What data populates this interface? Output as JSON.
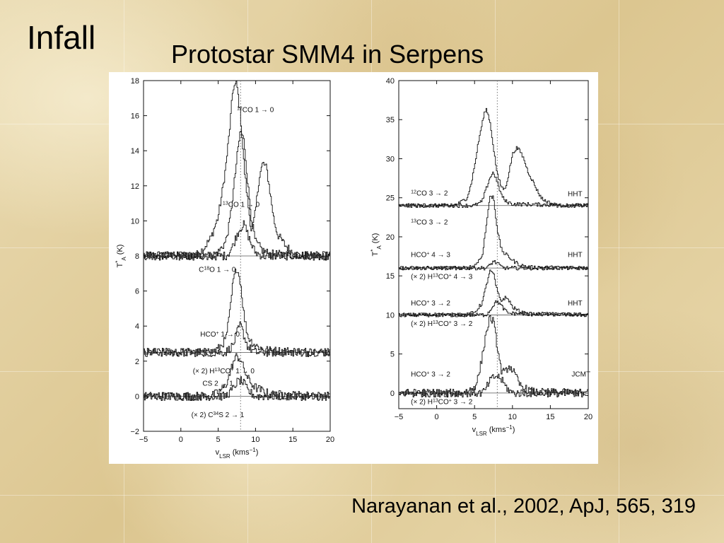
{
  "slide": {
    "title": "Infall",
    "subtitle": "Protostar SMM4 in Serpens",
    "citation": "Narayanan et al., 2002, ApJ, 565, 319"
  },
  "chart_data": [
    {
      "type": "line",
      "panel": "left",
      "xlabel": "v_LSR (kms^-1)",
      "ylabel": "T*_A (K)",
      "xlim": [
        -5,
        20
      ],
      "ylim": [
        -2,
        18
      ],
      "xticks": [
        -5,
        0,
        5,
        10,
        15,
        20
      ],
      "yticks": [
        -2,
        0,
        2,
        4,
        6,
        8,
        10,
        12,
        14,
        16,
        18
      ],
      "vline": 8,
      "baselines": [
        8,
        2.5,
        0
      ],
      "series": [
        {
          "name": "12CO 1→0",
          "style": "step",
          "points": [
            [
              -5,
              8
            ],
            [
              2,
              8
            ],
            [
              3,
              8.4
            ],
            [
              4,
              9
            ],
            [
              5,
              10.2
            ],
            [
              5.5,
              11.5
            ],
            [
              6,
              13
            ],
            [
              6.5,
              15
            ],
            [
              7,
              17.6
            ],
            [
              7.5,
              17.8
            ],
            [
              8,
              16
            ],
            [
              8.5,
              13
            ],
            [
              9,
              11
            ],
            [
              9.5,
              9.3
            ],
            [
              10,
              10.5
            ],
            [
              10.5,
              12.5
            ],
            [
              11,
              13.3
            ],
            [
              11.5,
              13
            ],
            [
              12,
              11.5
            ],
            [
              12.5,
              10
            ],
            [
              13,
              9.2
            ],
            [
              14,
              8.6
            ],
            [
              15,
              8.2
            ],
            [
              16,
              8
            ],
            [
              20,
              8
            ]
          ]
        },
        {
          "name": "13CO 1→0",
          "style": "step",
          "points": [
            [
              -5,
              8
            ],
            [
              4,
              8
            ],
            [
              5,
              8.2
            ],
            [
              6,
              8.8
            ],
            [
              6.5,
              9.8
            ],
            [
              7,
              11.5
            ],
            [
              7.5,
              13.5
            ],
            [
              8,
              15.2
            ],
            [
              8.5,
              14.5
            ],
            [
              9,
              12
            ],
            [
              9.5,
              10
            ],
            [
              10,
              8.8
            ],
            [
              11,
              8.3
            ],
            [
              12,
              8.1
            ],
            [
              20,
              8
            ]
          ]
        },
        {
          "name": "C18O 1→0",
          "style": "step",
          "points": [
            [
              -5,
              8
            ],
            [
              6,
              8
            ],
            [
              6.5,
              8.2
            ],
            [
              7,
              8.6
            ],
            [
              7.5,
              9.2
            ],
            [
              8,
              9.6
            ],
            [
              8.5,
              9.8
            ],
            [
              9,
              9.2
            ],
            [
              9.5,
              8.6
            ],
            [
              10,
              8.2
            ],
            [
              11,
              8
            ],
            [
              20,
              8
            ]
          ]
        },
        {
          "name": "HCO+ 1→0",
          "style": "step",
          "points": [
            [
              -5,
              2.5
            ],
            [
              4,
              2.5
            ],
            [
              5,
              2.7
            ],
            [
              6,
              3.2
            ],
            [
              6.5,
              4.5
            ],
            [
              7,
              6.5
            ],
            [
              7.5,
              7.4
            ],
            [
              8,
              6.5
            ],
            [
              8.5,
              4.5
            ],
            [
              9,
              3.4
            ],
            [
              9.5,
              3.1
            ],
            [
              10,
              2.9
            ],
            [
              11,
              2.7
            ],
            [
              12,
              2.6
            ],
            [
              20,
              2.5
            ]
          ]
        },
        {
          "name": "(×2) H13CO+ 1→0",
          "style": "step",
          "points": [
            [
              -5,
              2.5
            ],
            [
              6,
              2.5
            ],
            [
              7,
              2.9
            ],
            [
              7.5,
              3.6
            ],
            [
              8,
              4.1
            ],
            [
              8.5,
              3.4
            ],
            [
              9,
              2.8
            ],
            [
              10,
              2.5
            ],
            [
              20,
              2.5
            ]
          ]
        },
        {
          "name": "CS 2→1",
          "style": "step",
          "points": [
            [
              -5,
              0
            ],
            [
              4,
              0
            ],
            [
              5,
              0.2
            ],
            [
              6,
              0.6
            ],
            [
              6.5,
              1.2
            ],
            [
              7,
              1.9
            ],
            [
              7.5,
              2.3
            ],
            [
              8,
              2.1
            ],
            [
              8.5,
              1.5
            ],
            [
              9,
              1
            ],
            [
              9.5,
              0.7
            ],
            [
              10,
              0.5
            ],
            [
              11,
              0.3
            ],
            [
              12,
              0.1
            ],
            [
              20,
              0
            ]
          ]
        },
        {
          "name": "(×2) C34S 2→1",
          "style": "step",
          "points": [
            [
              -5,
              0
            ],
            [
              6,
              0
            ],
            [
              7,
              0.4
            ],
            [
              7.5,
              0.8
            ],
            [
              8,
              0.9
            ],
            [
              8.5,
              0.7
            ],
            [
              9,
              0.3
            ],
            [
              10,
              0
            ],
            [
              20,
              0
            ]
          ]
        }
      ],
      "labels": [
        {
          "text": "12CO 1 → 0",
          "x": 7.5,
          "y": 16.2
        },
        {
          "text": "13CO 1 → 0",
          "x": 5.6,
          "y": 10.8
        },
        {
          "text": "C18O 1 → 0",
          "x": 2.4,
          "y": 7.1
        },
        {
          "text": "HCO+ 1 → 0",
          "x": 2.6,
          "y": 3.4
        },
        {
          "text": "(× 2) H13CO+ 1 → 0",
          "x": 1.6,
          "y": 1.3
        },
        {
          "text": "CS 2 → 1",
          "x": 2.9,
          "y": 0.6
        },
        {
          "text": "(× 2) C34S 2 → 1",
          "x": 1.4,
          "y": -1.2
        }
      ]
    },
    {
      "type": "line",
      "panel": "right",
      "xlabel": "v_LSR (kms^-1)",
      "ylabel": "T*_A (K)",
      "xlim": [
        -5,
        20
      ],
      "ylim": [
        -2,
        40
      ],
      "xticks": [
        -5,
        0,
        5,
        10,
        15,
        20
      ],
      "yticks": [
        0,
        5,
        10,
        15,
        20,
        25,
        30,
        35,
        40
      ],
      "vline": 8,
      "baselines": [
        24,
        16,
        10,
        0
      ],
      "series": [
        {
          "name": "12CO 3→2",
          "style": "step",
          "points": [
            [
              -5,
              24
            ],
            [
              2,
              24
            ],
            [
              3,
              24.3
            ],
            [
              4,
              25
            ],
            [
              4.5,
              26.5
            ],
            [
              5,
              29
            ],
            [
              5.5,
              32
            ],
            [
              6,
              34.5
            ],
            [
              6.5,
              36.5
            ],
            [
              7,
              35
            ],
            [
              7.5,
              31.5
            ],
            [
              8,
              28
            ],
            [
              8.5,
              26.5
            ],
            [
              9,
              26
            ],
            [
              9.5,
              28
            ],
            [
              10,
              30.5
            ],
            [
              10.5,
              31.4
            ],
            [
              11,
              31
            ],
            [
              11.5,
              30
            ],
            [
              12,
              28.5
            ],
            [
              12.5,
              27.5
            ],
            [
              13,
              26.5
            ],
            [
              13.5,
              25.5
            ],
            [
              14,
              24.8
            ],
            [
              15,
              24.3
            ],
            [
              16,
              24
            ],
            [
              20,
              24
            ]
          ]
        },
        {
          "name": "13CO 3→2",
          "style": "step",
          "points": [
            [
              -5,
              24
            ],
            [
              5,
              24
            ],
            [
              6,
              24.5
            ],
            [
              6.5,
              26
            ],
            [
              7,
              27.5
            ],
            [
              7.5,
              28.3
            ],
            [
              8,
              27
            ],
            [
              8.5,
              25.5
            ],
            [
              9,
              24.6
            ],
            [
              10,
              24.2
            ],
            [
              20,
              24
            ]
          ]
        },
        {
          "name": "HCO+ 4→3",
          "style": "step",
          "points": [
            [
              -5,
              16
            ],
            [
              4,
              16
            ],
            [
              5,
              16.3
            ],
            [
              6,
              17.5
            ],
            [
              6.5,
              21
            ],
            [
              7,
              25
            ],
            [
              7.5,
              25.2
            ],
            [
              8,
              21
            ],
            [
              8.5,
              18.5
            ],
            [
              9,
              17.8
            ],
            [
              9.5,
              17.5
            ],
            [
              10,
              17
            ],
            [
              11,
              16.4
            ],
            [
              12,
              16.1
            ],
            [
              20,
              16
            ]
          ]
        },
        {
          "name": "(×2) H13CO+ 4→3",
          "style": "step",
          "points": [
            [
              -5,
              16
            ],
            [
              6.5,
              16
            ],
            [
              7,
              16.3
            ],
            [
              7.5,
              16.9
            ],
            [
              8,
              16.6
            ],
            [
              8.5,
              16.2
            ],
            [
              9,
              16
            ],
            [
              20,
              16
            ]
          ]
        },
        {
          "name": "HCO+ 3→2",
          "style": "step",
          "points": [
            [
              -5,
              10
            ],
            [
              4,
              10
            ],
            [
              5,
              10.3
            ],
            [
              6,
              11.5
            ],
            [
              6.5,
              13.5
            ],
            [
              7,
              15.6
            ],
            [
              7.5,
              15.3
            ],
            [
              8,
              13
            ],
            [
              8.5,
              11.8
            ],
            [
              9,
              12.2
            ],
            [
              9.5,
              12
            ],
            [
              10,
              11
            ],
            [
              11,
              10.4
            ],
            [
              12,
              10.1
            ],
            [
              20,
              10
            ]
          ]
        },
        {
          "name": "(×2) H13CO+ 3→2",
          "style": "step",
          "points": [
            [
              -5,
              10
            ],
            [
              6.5,
              10
            ],
            [
              7,
              10.5
            ],
            [
              7.5,
              11.3
            ],
            [
              8,
              11.8
            ],
            [
              8.5,
              11.2
            ],
            [
              9,
              10.6
            ],
            [
              9.5,
              10.2
            ],
            [
              20,
              10
            ]
          ]
        },
        {
          "name": "HCO+ 3→2 (JCMT)",
          "style": "step",
          "points": [
            [
              -5,
              0
            ],
            [
              3,
              0
            ],
            [
              4,
              0.2
            ],
            [
              5,
              0.8
            ],
            [
              5.5,
              2
            ],
            [
              6,
              4.5
            ],
            [
              6.5,
              7.5
            ],
            [
              7,
              9.6
            ],
            [
              7.5,
              9.2
            ],
            [
              8,
              6
            ],
            [
              8.5,
              3
            ],
            [
              9,
              2.5
            ],
            [
              9.5,
              3.5
            ],
            [
              10,
              3
            ],
            [
              10.5,
              2
            ],
            [
              11,
              1
            ],
            [
              12,
              0.4
            ],
            [
              13,
              0.1
            ],
            [
              20,
              0
            ]
          ]
        },
        {
          "name": "(×2) H13CO+ 3→2 (JCMT)",
          "style": "step",
          "points": [
            [
              -5,
              0
            ],
            [
              6,
              0
            ],
            [
              6.5,
              0.5
            ],
            [
              7,
              1.5
            ],
            [
              7.5,
              2
            ],
            [
              8,
              2.2
            ],
            [
              8.5,
              1.8
            ],
            [
              9,
              1
            ],
            [
              9.5,
              0.4
            ],
            [
              10,
              0
            ],
            [
              20,
              0
            ]
          ]
        }
      ],
      "labels": [
        {
          "text": "12CO 3 → 2",
          "x": -3.4,
          "y": 25.3
        },
        {
          "text": "HHT",
          "x": 17.3,
          "y": 25.2
        },
        {
          "text": "13CO 3 → 2",
          "x": -3.4,
          "y": 21.6
        },
        {
          "text": "HCO+ 4 → 3",
          "x": -3.4,
          "y": 17.4
        },
        {
          "text": "HHT",
          "x": 17.3,
          "y": 17.4
        },
        {
          "text": "(× 2) H13CO+ 4 → 3",
          "x": -3.4,
          "y": 14.6
        },
        {
          "text": "HCO+ 3 → 2",
          "x": -3.4,
          "y": 11.2
        },
        {
          "text": "HHT",
          "x": 17.3,
          "y": 11.2
        },
        {
          "text": "(× 2) H13CO+ 3 → 2",
          "x": -3.4,
          "y": 8.6
        },
        {
          "text": "HCO+ 3 → 2",
          "x": -3.4,
          "y": 2.1
        },
        {
          "text": "JCMT",
          "x": 17.8,
          "y": 2.1
        },
        {
          "text": "(× 2) H13CO+ 3 → 2",
          "x": -3.4,
          "y": -1.4
        }
      ]
    }
  ],
  "colors": {
    "line": "#111111",
    "baseline": "#555555",
    "vline": "#777777",
    "background": "#e8d8ae"
  }
}
